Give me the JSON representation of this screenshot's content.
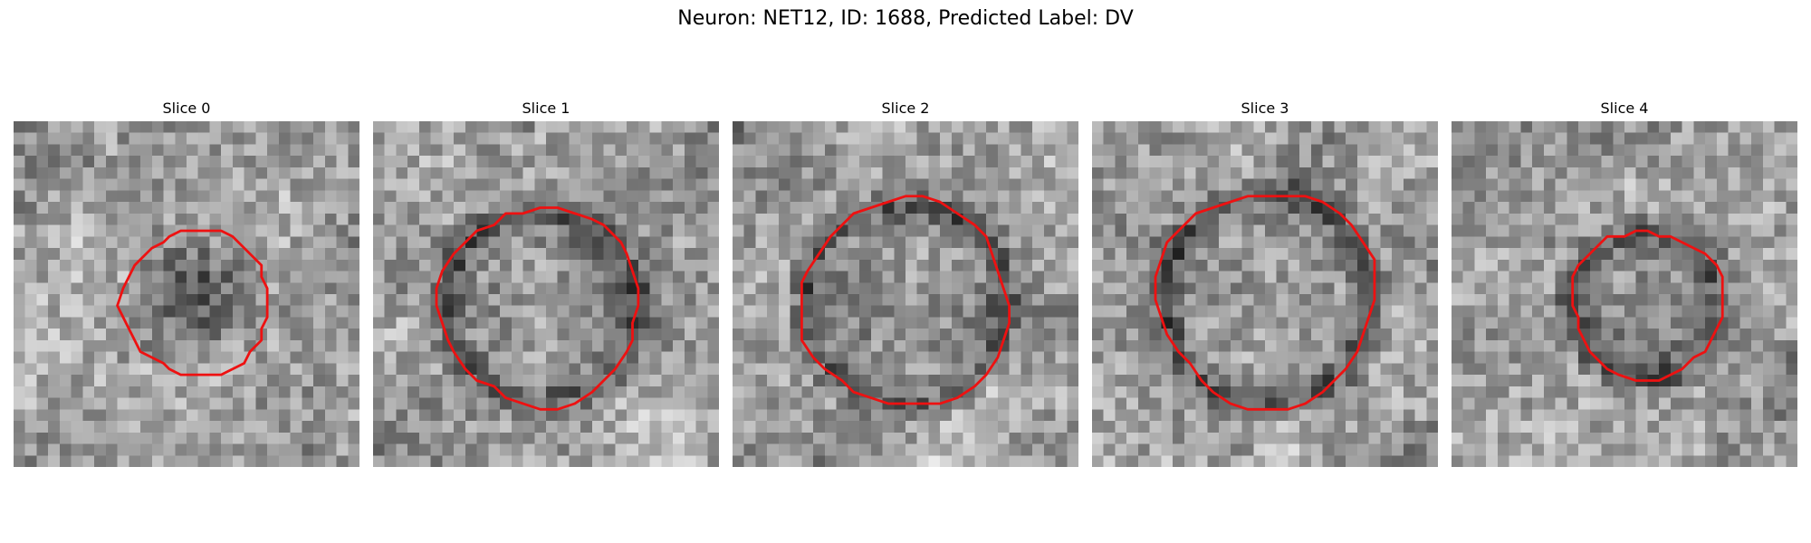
{
  "figure": {
    "title": "Neuron: NET12, ID: 1688, Predicted Label: DV"
  },
  "colors": {
    "contour": "#ee1111",
    "background": "#ffffff"
  },
  "panels": [
    {
      "title": "Slice 0"
    },
    {
      "title": "Slice 1"
    },
    {
      "title": "Slice 2"
    },
    {
      "title": "Slice 3"
    },
    {
      "title": "Slice 4"
    }
  ]
}
